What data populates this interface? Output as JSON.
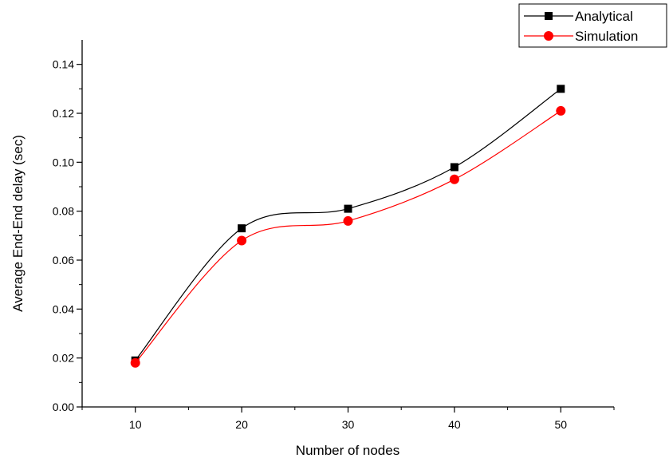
{
  "chart_data": {
    "type": "line",
    "title": "",
    "xlabel": "Number of nodes",
    "ylabel": "Average End-End delay (sec)",
    "x": [
      10,
      20,
      30,
      40,
      50
    ],
    "x_tick_labels": [
      "10",
      "20",
      "30",
      "40",
      "50"
    ],
    "xlim": [
      5,
      55
    ],
    "ylim": [
      0,
      0.15
    ],
    "y_tick_labels": [
      "0.00",
      "0.02",
      "0.04",
      "0.06",
      "0.08",
      "0.10",
      "0.12",
      "0.14"
    ],
    "y_ticks": [
      0,
      0.02,
      0.04,
      0.06,
      0.08,
      0.1,
      0.12,
      0.14
    ],
    "grid": false,
    "legend_position": "top-right",
    "series": [
      {
        "name": "Analytical",
        "values": [
          0.019,
          0.073,
          0.081,
          0.098,
          0.13
        ],
        "color": "#000000",
        "marker": "square"
      },
      {
        "name": "Simulation",
        "values": [
          0.018,
          0.068,
          0.076,
          0.093,
          0.121
        ],
        "color": "#ff0000",
        "marker": "circle"
      }
    ]
  }
}
